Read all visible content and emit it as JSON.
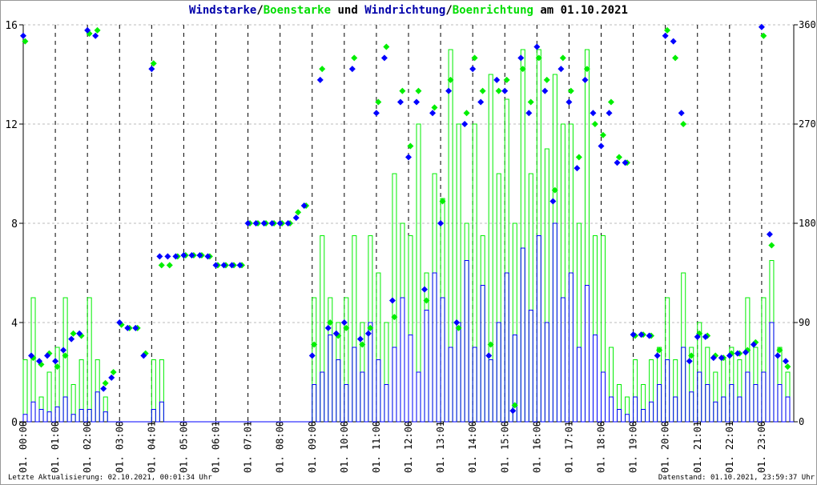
{
  "title": {
    "part1": "Windstarke",
    "sep1": "/",
    "part2": "Boenstarke",
    "part3": " und ",
    "part4": "Windrichtung",
    "sep2": "/",
    "part5": "Boenrichtung",
    "part6": " am 01.10.2021"
  },
  "footer": {
    "last_update": "Letzte Aktualisierung: 02.10.2021, 00:01:34 Uhr",
    "data_status": "Datenstand: 01.10.2021, 23:59:37 Uhr"
  },
  "colors": {
    "wind": "#0000ff",
    "gust": "#00ee00",
    "title_blue": "#0000aa"
  },
  "chart_data": {
    "type": "line",
    "title": "Windstarke/Boenstarke und Windrichtung/Boenrichtung am 01.10.2021",
    "x_tick_labels": [
      "01. 00:00",
      "01. 01:00",
      "01. 02:00",
      "01. 03:00",
      "01. 04:01",
      "01. 05:00",
      "01. 06:01",
      "01. 07:01",
      "01. 08:00",
      "01. 09:00",
      "01. 10:00",
      "01. 11:00",
      "01. 12:00",
      "01. 13:01",
      "01. 14:00",
      "01. 15:00",
      "01. 16:00",
      "01. 17:01",
      "01. 18:00",
      "01. 19:00",
      "01. 20:00",
      "01. 21:01",
      "01. 22:01",
      "01. 23:00"
    ],
    "x_unit": "hours, 15-minute steps",
    "xlim": [
      0,
      24
    ],
    "y_left": {
      "ylim": [
        0,
        16
      ],
      "ticks": [
        "0",
        "4",
        "8",
        "12",
        "16"
      ]
    },
    "y_right": {
      "ylim": [
        0,
        360
      ],
      "ticks": [
        "0",
        "90",
        "180",
        "270",
        "360"
      ]
    },
    "grid": true,
    "series": [
      {
        "name": "Windstarke",
        "axis": "left",
        "kind": "line",
        "values": [
          0.3,
          0.8,
          0.5,
          0.4,
          0.6,
          1.0,
          0.3,
          0.5,
          0.5,
          1.2,
          0.4,
          0,
          0,
          0,
          0,
          0,
          0.5,
          0.8,
          0,
          0,
          0,
          0,
          0,
          0,
          0,
          0,
          0,
          0,
          0,
          0,
          0,
          0,
          0,
          0,
          0,
          0,
          1.5,
          2.0,
          3.5,
          2.5,
          1.5,
          3.0,
          2.0,
          4.0,
          2.5,
          1.5,
          3.0,
          5.0,
          3.5,
          2.0,
          4.5,
          6.0,
          5.0,
          3.0,
          4.0,
          6.5,
          3.0,
          5.5,
          2.5,
          4.0,
          6.0,
          3.5,
          7.0,
          4.5,
          7.5,
          4.0,
          8.0,
          5.0,
          6.0,
          3.0,
          5.5,
          3.5,
          2.0,
          1.0,
          0.5,
          0.3,
          1.0,
          0.5,
          0.8,
          1.5,
          2.5,
          1.0,
          3.0,
          1.2,
          2.0,
          1.5,
          0.8,
          1.0,
          1.5,
          1.0,
          2.0,
          1.5,
          2.0,
          4.0,
          1.5,
          1.0
        ]
      },
      {
        "name": "Boenstarke",
        "axis": "left",
        "kind": "line",
        "values": [
          2.5,
          5.0,
          1.0,
          2.0,
          3.0,
          5.0,
          1.5,
          2.5,
          5.0,
          2.5,
          1.0,
          0,
          0,
          0,
          0,
          0,
          2.5,
          2.5,
          0,
          0,
          0,
          0,
          0,
          0,
          0,
          0,
          0,
          0,
          0,
          0,
          0,
          0,
          0,
          0,
          0,
          0,
          5,
          7.5,
          5,
          4,
          5,
          7.5,
          4,
          7.5,
          6,
          4,
          10,
          8,
          7.5,
          12,
          6,
          10,
          9,
          15,
          12,
          8,
          12,
          7.5,
          14,
          10,
          13,
          8,
          15,
          10,
          15,
          11,
          14,
          12,
          12,
          8,
          15,
          7.5,
          7.5,
          3,
          1.5,
          1,
          2.5,
          1.5,
          2.5,
          3,
          5,
          2.5,
          6,
          3,
          4,
          3,
          2,
          2.5,
          3,
          2.5,
          5,
          3,
          5,
          6.5,
          3,
          2
        ]
      },
      {
        "name": "Windrichtung",
        "axis": "right",
        "kind": "scatter",
        "values": [
          350,
          60,
          55,
          60,
          55,
          65,
          75,
          80,
          355,
          350,
          30,
          40,
          90,
          85,
          85,
          60,
          320,
          150,
          150,
          150,
          151,
          151,
          151,
          150,
          142,
          142,
          142,
          142,
          180,
          180,
          180,
          180,
          180,
          180,
          185,
          196,
          60,
          310,
          85,
          80,
          90,
          320,
          75,
          80,
          280,
          330,
          110,
          290,
          240,
          290,
          120,
          280,
          180,
          300,
          90,
          270,
          320,
          290,
          60,
          310,
          300,
          10,
          330,
          280,
          340,
          300,
          200,
          320,
          290,
          230,
          310,
          280,
          250,
          280,
          235,
          235,
          79,
          79,
          78,
          60,
          350,
          345,
          280,
          55,
          77,
          77,
          58,
          58,
          60,
          62,
          63,
          70,
          358,
          170,
          60,
          55
        ]
      },
      {
        "name": "Boenrichtung",
        "axis": "right",
        "kind": "scatter",
        "values": [
          345,
          58,
          52,
          62,
          50,
          60,
          80,
          78,
          352,
          355,
          35,
          45,
          88,
          85,
          85,
          62,
          325,
          142,
          142,
          150,
          151,
          151,
          151,
          150,
          142,
          142,
          142,
          142,
          180,
          180,
          180,
          180,
          180,
          180,
          190,
          196,
          70,
          320,
          90,
          78,
          85,
          330,
          70,
          85,
          290,
          340,
          95,
          300,
          250,
          300,
          110,
          285,
          200,
          310,
          85,
          280,
          330,
          300,
          70,
          300,
          310,
          15,
          320,
          290,
          330,
          310,
          210,
          330,
          300,
          240,
          320,
          270,
          260,
          290,
          240,
          235,
          78,
          79,
          78,
          65,
          355,
          330,
          270,
          60,
          80,
          78,
          60,
          58,
          62,
          62,
          65,
          72,
          350,
          160,
          65,
          50
        ]
      }
    ]
  }
}
